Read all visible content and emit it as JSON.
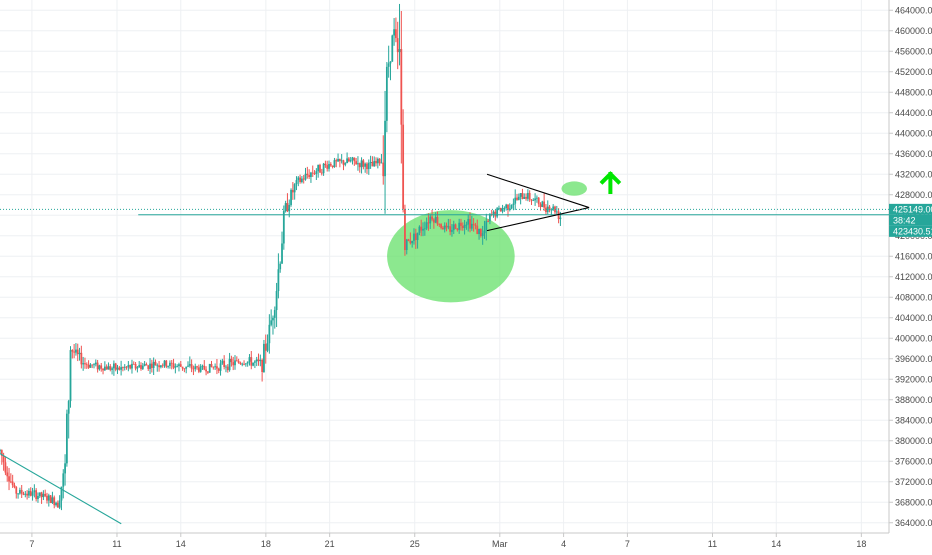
{
  "chart_data": {
    "type": "candlestick",
    "title": "",
    "xlabel": "",
    "ylabel": "",
    "grid": true,
    "ylim": [
      362000,
      466000
    ],
    "xlim": [
      5.5,
      47.3
    ],
    "x_ticks": [
      {
        "label": "7",
        "t": 7
      },
      {
        "label": "11",
        "t": 11
      },
      {
        "label": "14",
        "t": 14
      },
      {
        "label": "18",
        "t": 18
      },
      {
        "label": "21",
        "t": 21
      },
      {
        "label": "25",
        "t": 25
      },
      {
        "label": "Mar",
        "t": 29
      },
      {
        "label": "4",
        "t": 32
      },
      {
        "label": "7",
        "t": 35
      },
      {
        "label": "11",
        "t": 39
      },
      {
        "label": "14",
        "t": 42
      },
      {
        "label": "18",
        "t": 46
      }
    ],
    "y_ticks": [
      364000,
      368000,
      372000,
      376000,
      380000,
      384000,
      388000,
      392000,
      396000,
      400000,
      404000,
      408000,
      412000,
      416000,
      420000,
      424000,
      428000,
      432000,
      436000,
      440000,
      444000,
      448000,
      452000,
      456000,
      460000,
      464000
    ],
    "price_levels": [
      {
        "label": "425149.00",
        "value": 425149,
        "color": "#26a69a"
      },
      {
        "label": "38:42",
        "value": 424100,
        "color": "#26a69a"
      },
      {
        "label": "423430.51",
        "value": 423430.51,
        "color": "#26a69a"
      }
    ],
    "series_path": [
      [
        5.5,
        378000
      ],
      [
        6.2,
        370000
      ],
      [
        7.2,
        369500
      ],
      [
        8.2,
        368000
      ],
      [
        8.6,
        375000
      ],
      [
        8.8,
        398000
      ],
      [
        9.5,
        395000
      ],
      [
        11,
        394000
      ],
      [
        13,
        395000
      ],
      [
        15,
        394000
      ],
      [
        17,
        395500
      ],
      [
        17.8,
        395000
      ],
      [
        18.2,
        402000
      ],
      [
        18.5,
        410000
      ],
      [
        18.9,
        425000
      ],
      [
        19.4,
        430000
      ],
      [
        20,
        432000
      ],
      [
        21,
        434000
      ],
      [
        22,
        434500
      ],
      [
        23,
        433500
      ],
      [
        23.5,
        435000
      ],
      [
        23.7,
        452000
      ],
      [
        24,
        460000
      ],
      [
        24.3,
        452000
      ],
      [
        24.5,
        418000
      ],
      [
        25,
        420000
      ],
      [
        25.8,
        424000
      ],
      [
        26.5,
        421000
      ],
      [
        27.5,
        423000
      ],
      [
        28.2,
        420000
      ],
      [
        28.6,
        424000
      ],
      [
        29.4,
        426000
      ],
      [
        30.2,
        428000
      ],
      [
        31,
        426000
      ],
      [
        31.6,
        425200
      ],
      [
        31.9,
        423430.51
      ]
    ],
    "annotations": [
      {
        "type": "trendline",
        "points": [
          [
            5.5,
            377500
          ],
          [
            11.2,
            363800
          ]
        ],
        "color": "#26a69a"
      },
      {
        "type": "trendline",
        "points": [
          [
            12,
            424100
          ],
          [
            47.3,
            424100
          ]
        ],
        "color": "#26a69a"
      },
      {
        "type": "trendline",
        "points": [
          [
            28.4,
            432000
          ],
          [
            33.2,
            425500
          ]
        ],
        "color": "#000000"
      },
      {
        "type": "trendline",
        "points": [
          [
            28.4,
            421000
          ],
          [
            33.2,
            425500
          ]
        ],
        "color": "#000000"
      },
      {
        "type": "ellipse",
        "center": [
          26.7,
          416000
        ],
        "radius_t": 3.0,
        "radius_v": 9000,
        "color": "#66e06a"
      },
      {
        "type": "ellipse",
        "center": [
          32.5,
          429200
        ],
        "radius_t": 0.6,
        "radius_v": 1400,
        "color": "#66e06a"
      },
      {
        "type": "arrow-up",
        "at": [
          34.2,
          430500
        ],
        "color": "#00e600"
      }
    ]
  }
}
